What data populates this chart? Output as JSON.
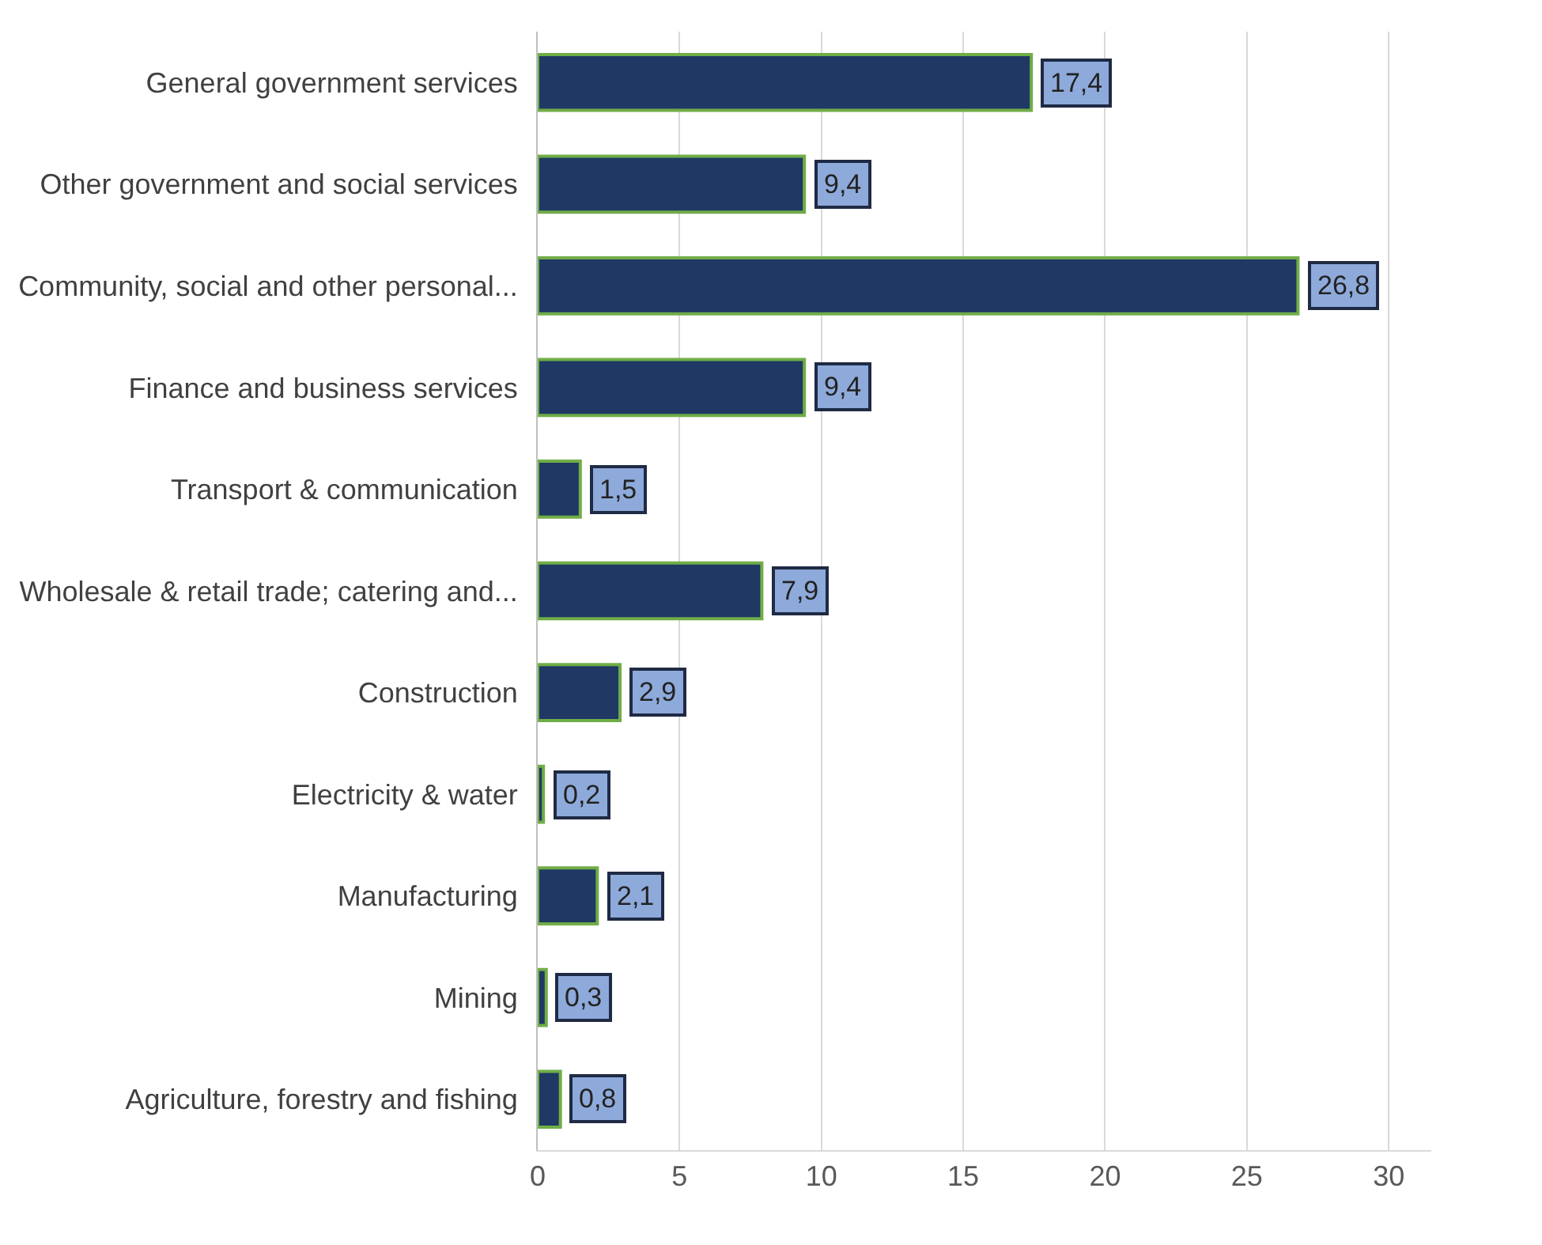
{
  "chart_data": {
    "type": "bar",
    "orientation": "horizontal",
    "categories": [
      "General government services",
      "Other government and social services",
      "Community, social and other personal...",
      "Finance and business services",
      "Transport & communication",
      "Wholesale & retail trade; catering and...",
      "Construction",
      "Electricity & water",
      "Manufacturing",
      "Mining",
      "Agriculture, forestry and fishing"
    ],
    "values": [
      17.4,
      9.4,
      26.8,
      9.4,
      1.5,
      7.9,
      2.9,
      0.2,
      2.1,
      0.3,
      0.8
    ],
    "value_labels": [
      "17,4",
      "9,4",
      "26,8",
      "9,4",
      "1,5",
      "7,9",
      "2,9",
      "0,2",
      "2,1",
      "0,3",
      "0,8"
    ],
    "color": "#1f3864",
    "xlim": [
      0,
      31.5
    ],
    "xticks": [
      0,
      5,
      10,
      15,
      20,
      25,
      30
    ],
    "grid": "x",
    "legend": false
  }
}
